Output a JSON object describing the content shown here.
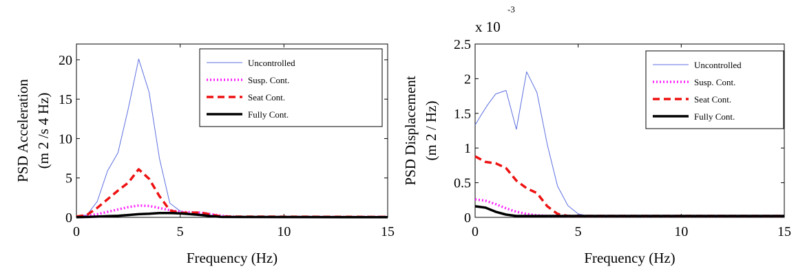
{
  "chart_data": [
    {
      "type": "line",
      "id": "left",
      "xlabel": "Frequency (Hz)",
      "ylabel_line1": "PSD Acceleration",
      "ylabel_line2": "(m  2 /s  4  Hz)",
      "xlim": [
        0,
        15
      ],
      "ylim": [
        0,
        22
      ],
      "xticks": [
        0,
        5,
        10,
        15
      ],
      "yticks": [
        0,
        5,
        10,
        15,
        20
      ],
      "tick_labels_x": [
        "0",
        "5",
        "10",
        "15"
      ],
      "tick_labels_y": [
        "0",
        "5",
        "10",
        "15",
        "20"
      ],
      "legend_position": "top-right",
      "series": [
        {
          "name": "Uncontrolled",
          "color": "#5b6ee0",
          "style": "solid",
          "x": [
            0,
            0.5,
            1,
            1.5,
            2,
            2.5,
            3,
            3.5,
            4,
            4.5,
            5,
            5.5,
            6,
            7,
            8,
            10,
            15
          ],
          "y": [
            0.1,
            0.3,
            2.0,
            5.9,
            8.2,
            13.8,
            20.1,
            15.9,
            7.5,
            1.8,
            0.8,
            0.5,
            0.3,
            0.15,
            0.1,
            0.05,
            0.05
          ]
        },
        {
          "name": "Susp. Cont.",
          "color": "#ff22ff",
          "style": "dotted",
          "x": [
            0,
            0.5,
            1,
            1.5,
            2,
            2.5,
            3,
            3.5,
            4,
            4.5,
            5,
            5.5,
            6,
            6.5,
            7,
            7.5,
            8,
            15
          ],
          "y": [
            0.05,
            0.2,
            0.4,
            0.7,
            1.0,
            1.3,
            1.5,
            1.45,
            1.2,
            0.9,
            0.7,
            0.65,
            0.6,
            0.4,
            0.2,
            0.1,
            0.05,
            0.05
          ]
        },
        {
          "name": "Seat Cont.",
          "color": "#ee1111",
          "style": "dashed",
          "x": [
            0,
            0.5,
            1,
            1.5,
            2,
            2.5,
            3,
            3.5,
            4,
            4.5,
            5,
            5.5,
            6,
            6.5,
            7,
            15
          ],
          "y": [
            0.1,
            0.3,
            1.2,
            2.3,
            3.4,
            4.4,
            6.1,
            4.9,
            2.7,
            0.9,
            0.55,
            0.6,
            0.6,
            0.35,
            0.1,
            0.05
          ]
        },
        {
          "name": "Fully Cont.",
          "color": "#000000",
          "style": "solid",
          "x": [
            0,
            0.5,
            1,
            1.5,
            2,
            2.5,
            3,
            3.5,
            4,
            4.5,
            5,
            5.5,
            6,
            6.5,
            7,
            15
          ],
          "y": [
            0.02,
            0.05,
            0.1,
            0.15,
            0.2,
            0.3,
            0.4,
            0.45,
            0.55,
            0.55,
            0.5,
            0.4,
            0.3,
            0.15,
            0.05,
            0.02
          ]
        }
      ]
    },
    {
      "type": "line",
      "id": "right",
      "xlabel": "Frequency (Hz)",
      "ylabel_line1": "PSD Displacement",
      "ylabel_line2": "(m  2  / Hz)",
      "exponent_base": "x 10",
      "exponent_power": "-3",
      "xlim": [
        0,
        15
      ],
      "ylim": [
        0,
        2.5
      ],
      "xticks": [
        0,
        5,
        10,
        15
      ],
      "yticks": [
        0,
        0.5,
        1,
        1.5,
        2,
        2.5
      ],
      "tick_labels_x": [
        "0",
        "5",
        "10",
        "15"
      ],
      "tick_labels_y": [
        "0",
        "0.5",
        "1",
        "1.5",
        "2",
        "2.5"
      ],
      "legend_position": "top-right",
      "series": [
        {
          "name": "Uncontrolled",
          "color": "#5b6ee0",
          "style": "solid",
          "x": [
            0,
            0.3,
            0.6,
            1.0,
            1.5,
            2.0,
            2.5,
            3.0,
            3.5,
            4.0,
            4.5,
            5.0,
            5.5,
            15
          ],
          "y": [
            1.33,
            1.48,
            1.62,
            1.78,
            1.83,
            1.27,
            2.1,
            1.8,
            1.05,
            0.45,
            0.17,
            0.05,
            0.02,
            0.02
          ]
        },
        {
          "name": "Susp. Cont.",
          "color": "#ff22ff",
          "style": "dotted",
          "x": [
            0,
            0.5,
            1.0,
            1.5,
            2.0,
            2.5,
            3.0,
            3.5,
            4.0,
            15
          ],
          "y": [
            0.26,
            0.24,
            0.19,
            0.13,
            0.08,
            0.05,
            0.03,
            0.02,
            0.02,
            0.02
          ]
        },
        {
          "name": "Seat Cont.",
          "color": "#ee1111",
          "style": "dashed",
          "x": [
            0,
            0.5,
            1.0,
            1.5,
            2.0,
            2.5,
            3.0,
            3.5,
            4.0,
            4.5,
            5.0,
            15
          ],
          "y": [
            0.88,
            0.8,
            0.78,
            0.71,
            0.53,
            0.42,
            0.35,
            0.16,
            0.05,
            0.02,
            0.02,
            0.02
          ]
        },
        {
          "name": "Fully Cont.",
          "color": "#000000",
          "style": "solid",
          "x": [
            0,
            0.5,
            1.0,
            1.5,
            2.0,
            2.5,
            15
          ],
          "y": [
            0.16,
            0.14,
            0.08,
            0.04,
            0.02,
            0.02,
            0.02
          ]
        }
      ]
    }
  ]
}
